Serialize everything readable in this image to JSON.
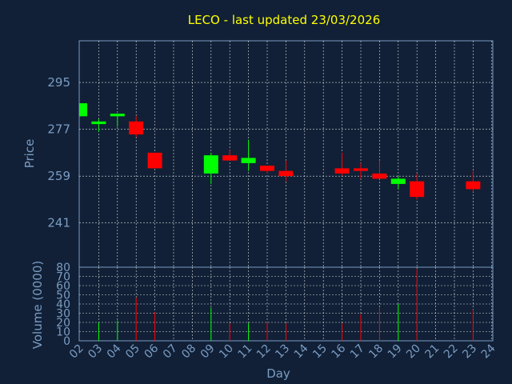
{
  "chart_data": {
    "type": "candlestick",
    "title": "LECO - last updated 23/03/2026",
    "ylabel": "Price",
    "volume_label": "Volume (0000)",
    "xlabel": "Day",
    "x_ticks": [
      "02",
      "03",
      "04",
      "05",
      "06",
      "07",
      "08",
      "09",
      "10",
      "11",
      "12",
      "13",
      "14",
      "15",
      "16",
      "17",
      "18",
      "19",
      "20",
      "21",
      "22",
      "23",
      "24"
    ],
    "price_ticks": [
      241,
      259,
      277,
      295
    ],
    "price_ylim": [
      224,
      311
    ],
    "volume_ticks": [
      0,
      10,
      20,
      30,
      40,
      50,
      60,
      70,
      80
    ],
    "volume_ylim": [
      0,
      80
    ],
    "colors": {
      "up": "#00ff00",
      "down": "#ff0000",
      "title": "#ffff00",
      "axis": "#7a9cc4",
      "background": "#112036"
    },
    "candles": [
      {
        "day": "02",
        "open": 282,
        "high": 287,
        "low": 282,
        "close": 287,
        "volume": 0
      },
      {
        "day": "03",
        "open": 279,
        "high": 281,
        "low": 276,
        "close": 280,
        "volume": 20
      },
      {
        "day": "04",
        "open": 282,
        "high": 283,
        "low": 278,
        "close": 283,
        "volume": 22
      },
      {
        "day": "05",
        "open": 280,
        "high": 282,
        "low": 274,
        "close": 275,
        "volume": 47
      },
      {
        "day": "06",
        "open": 268,
        "high": 268,
        "low": 262,
        "close": 262,
        "volume": 31
      },
      {
        "day": "09",
        "open": 260,
        "high": 268,
        "low": 256,
        "close": 267,
        "volume": 36
      },
      {
        "day": "10",
        "open": 267,
        "high": 269,
        "low": 265,
        "close": 265,
        "volume": 19
      },
      {
        "day": "11",
        "open": 264,
        "high": 273,
        "low": 261,
        "close": 266,
        "volume": 19
      },
      {
        "day": "12",
        "open": 263,
        "high": 263,
        "low": 260,
        "close": 261,
        "volume": 20
      },
      {
        "day": "13",
        "open": 261,
        "high": 265,
        "low": 257,
        "close": 259,
        "volume": 19
      },
      {
        "day": "16",
        "open": 262,
        "high": 268,
        "low": 259,
        "close": 260,
        "volume": 19
      },
      {
        "day": "17",
        "open": 262,
        "high": 264,
        "low": 258,
        "close": 261,
        "volume": 29
      },
      {
        "day": "18",
        "open": 260,
        "high": 265,
        "low": 258,
        "close": 258,
        "volume": 36
      },
      {
        "day": "19",
        "open": 256,
        "high": 259,
        "low": 254,
        "close": 258,
        "volume": 40
      },
      {
        "day": "20",
        "open": 257,
        "high": 260,
        "low": 250,
        "close": 251,
        "volume": 78
      },
      {
        "day": "23",
        "open": 257,
        "high": 261,
        "low": 253,
        "close": 254,
        "volume": 34
      }
    ]
  }
}
